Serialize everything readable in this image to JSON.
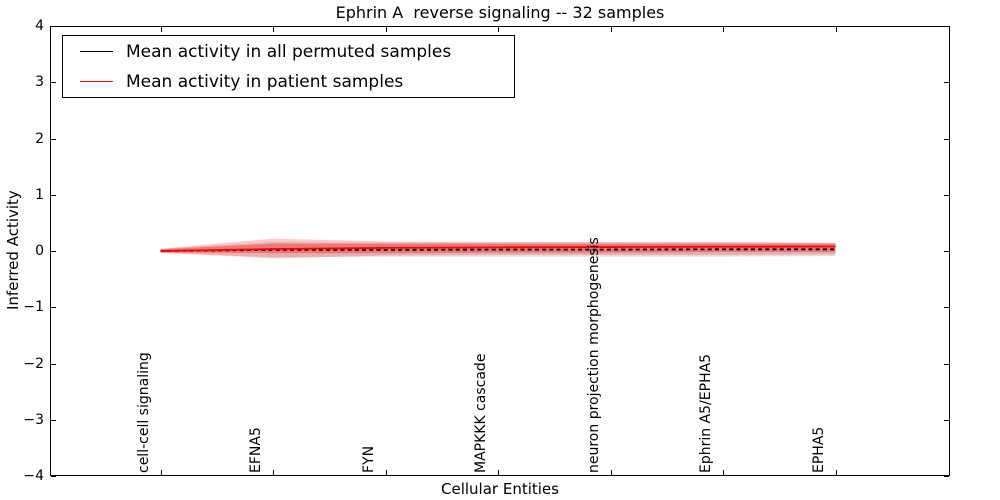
{
  "chart_data": {
    "type": "line",
    "title": "Ephrin A  reverse signaling -- 32 samples",
    "xlabel": "Cellular Entities",
    "ylabel": "Inferred Activity",
    "ylim": [
      -4,
      4
    ],
    "yticks": [
      4,
      3,
      2,
      1,
      0,
      -1,
      -2,
      -3,
      -4
    ],
    "ytick_labels": [
      "4",
      "3",
      "2",
      "1",
      "0",
      "−1",
      "−2",
      "−3",
      "−4"
    ],
    "grid": false,
    "legend_position": "upper left",
    "categories": [
      "cell-cell signaling",
      "EFNA5",
      "FYN",
      "MAPKKK cascade",
      "neuron projection morphogenesis",
      "Ephrin A5/EPHA5",
      "EPHA5"
    ],
    "series": [
      {
        "name": "Mean activity in all permuted samples",
        "color": "#000000",
        "style": "dashed",
        "values": [
          0.0,
          0.02,
          0.02,
          0.025,
          0.025,
          0.03,
          0.03
        ]
      },
      {
        "name": "Mean activity in patient samples",
        "color": "#ff0000",
        "style": "solid",
        "values": [
          0.0,
          0.035,
          0.055,
          0.065,
          0.07,
          0.075,
          0.08
        ]
      }
    ],
    "bands": [
      {
        "name": "permuted-samples-range",
        "color": "#999999",
        "opacity": 0.3,
        "upper": [
          0.04,
          0.16,
          0.15,
          0.15,
          0.15,
          0.15,
          0.14
        ],
        "lower": [
          -0.03,
          -0.11,
          -0.1,
          -0.1,
          -0.1,
          -0.1,
          -0.09
        ]
      },
      {
        "name": "patient-samples-range-outer",
        "color": "#ff2222",
        "opacity": 0.25,
        "upper": [
          0.04,
          0.22,
          0.17,
          0.16,
          0.16,
          0.16,
          0.15
        ],
        "lower": [
          -0.03,
          -0.13,
          -0.08,
          -0.07,
          -0.07,
          -0.07,
          -0.06
        ]
      },
      {
        "name": "patient-samples-range-inner",
        "color": "#ee3333",
        "opacity": 0.45,
        "upper": [
          0.03,
          0.13,
          0.13,
          0.13,
          0.13,
          0.13,
          0.13
        ],
        "lower": [
          -0.02,
          -0.04,
          -0.04,
          -0.03,
          -0.03,
          -0.02,
          -0.02
        ]
      }
    ]
  }
}
